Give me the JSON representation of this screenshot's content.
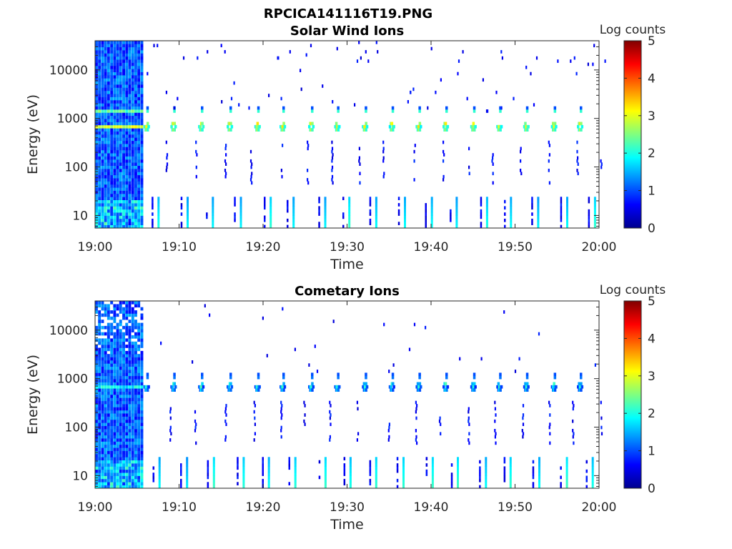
{
  "figure": {
    "title": "RPCICA141116T19.PNG"
  },
  "chart_data": [
    {
      "type": "heatmap",
      "title": "Solar Wind Ions",
      "xlabel": "Time",
      "ylabel": "Energy (eV)",
      "xlim": [
        "19:00",
        "20:00"
      ],
      "xtick_labels": [
        "19:00",
        "19:10",
        "19:20",
        "19:30",
        "19:40",
        "19:50",
        "20:00"
      ],
      "ylim": [
        5.5,
        40000
      ],
      "yscale": "log",
      "ytick_values": [
        10,
        100,
        1000,
        10000
      ],
      "ytick_labels": [
        "10",
        "100",
        "1000",
        "10000"
      ],
      "colorbar": {
        "label": "Log counts",
        "range": [
          0,
          5
        ],
        "tick_labels": [
          "0",
          "1",
          "2",
          "3",
          "4",
          "5"
        ],
        "colormap": "jet"
      },
      "features": {
        "dense_block_end_minute": 5.5,
        "sweep_times_minutes": [
          6,
          9.2,
          12.5,
          15.9,
          19.2,
          22.2,
          25.6,
          28.7,
          32,
          35.2,
          38.4,
          41.6,
          44.9,
          48,
          51.2,
          54.5,
          57.6
        ],
        "main_peak_energy_eV": 700,
        "secondary_peak_energy_eV": 1450,
        "main_peak_level": 3,
        "low_energy_level": 2
      }
    },
    {
      "type": "heatmap",
      "title": "Cometary Ions",
      "xlabel": "Time",
      "ylabel": "Energy (eV)",
      "xlim": [
        "19:00",
        "20:00"
      ],
      "xtick_labels": [
        "19:00",
        "19:10",
        "19:20",
        "19:30",
        "19:40",
        "19:50",
        "20:00"
      ],
      "ylim": [
        5.5,
        40000
      ],
      "yscale": "log",
      "ytick_values": [
        10,
        100,
        1000,
        10000
      ],
      "ytick_labels": [
        "10",
        "100",
        "1000",
        "10000"
      ],
      "colorbar": {
        "label": "Log counts",
        "range": [
          0,
          5
        ],
        "tick_labels": [
          "0",
          "1",
          "2",
          "3",
          "4",
          "5"
        ],
        "colormap": "jet"
      },
      "features": {
        "dense_block_end_minute": 5.5,
        "sweep_times_minutes": [
          6,
          9.2,
          12.5,
          15.9,
          19.2,
          22.2,
          25.6,
          28.7,
          32,
          35.2,
          38.4,
          41.6,
          44.9,
          48,
          51.2,
          54.5,
          57.6
        ],
        "main_peak_energy_eV": 660,
        "secondary_peak_energy_eV": 1000,
        "main_peak_level": 2,
        "low_energy_level": 2
      }
    }
  ]
}
